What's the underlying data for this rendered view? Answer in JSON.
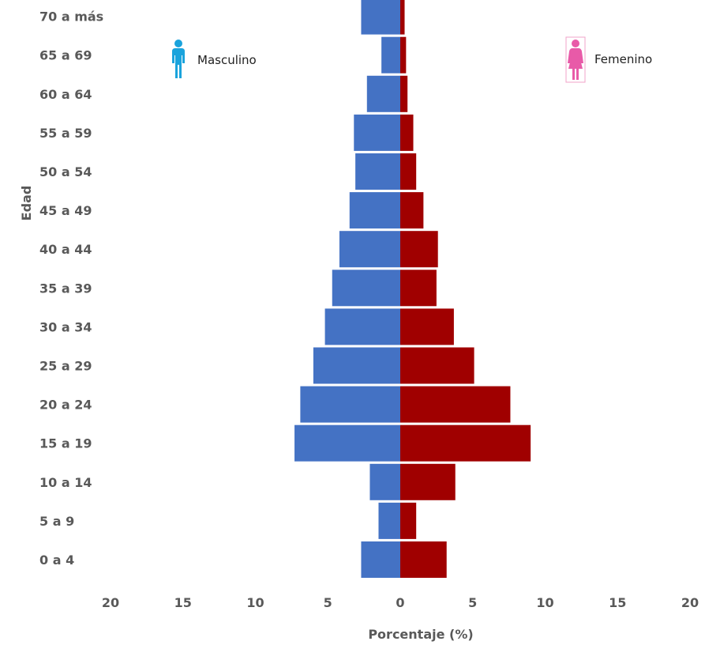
{
  "chart_data": {
    "type": "bar",
    "orientation": "horizontal",
    "layout": "population-pyramid",
    "title": "",
    "xlabel": "Porcentaje (%)",
    "ylabel": "Edad",
    "xlim": [
      -20,
      20
    ],
    "xticks": [
      -20,
      -15,
      -10,
      -5,
      0,
      5,
      10,
      15,
      20
    ],
    "xtick_labels": [
      "20",
      "15",
      "10",
      "5",
      "0",
      "5",
      "10",
      "15",
      "20"
    ],
    "categories": [
      "0 a 4",
      "5 a 9",
      "10 a 14",
      "15 a 19",
      "20 a 24",
      "25 a 29",
      "30 a 34",
      "35 a 39",
      "40 a 44",
      "45 a 49",
      "50 a 54",
      "55 a 59",
      "60 a 64",
      "65 a 69",
      "70 a más"
    ],
    "series": [
      {
        "name": "Masculino",
        "side": "left",
        "color": "#4472C4",
        "icon": "male-person-icon",
        "icon_color": "#1AA3DC",
        "values": [
          2.7,
          1.5,
          2.1,
          7.3,
          6.9,
          6.0,
          5.2,
          4.7,
          4.2,
          3.5,
          3.1,
          3.2,
          2.3,
          1.3,
          2.7
        ]
      },
      {
        "name": "Femenino",
        "side": "right",
        "color": "#A00000",
        "icon": "female-person-icon",
        "icon_color": "#E85AA8",
        "values": [
          3.2,
          1.1,
          3.8,
          9.0,
          7.6,
          5.1,
          3.7,
          2.5,
          2.6,
          1.6,
          1.1,
          0.9,
          0.5,
          0.4,
          0.3
        ]
      }
    ],
    "legend_placement": "inside-top-left-and-top-right",
    "grid": false
  }
}
